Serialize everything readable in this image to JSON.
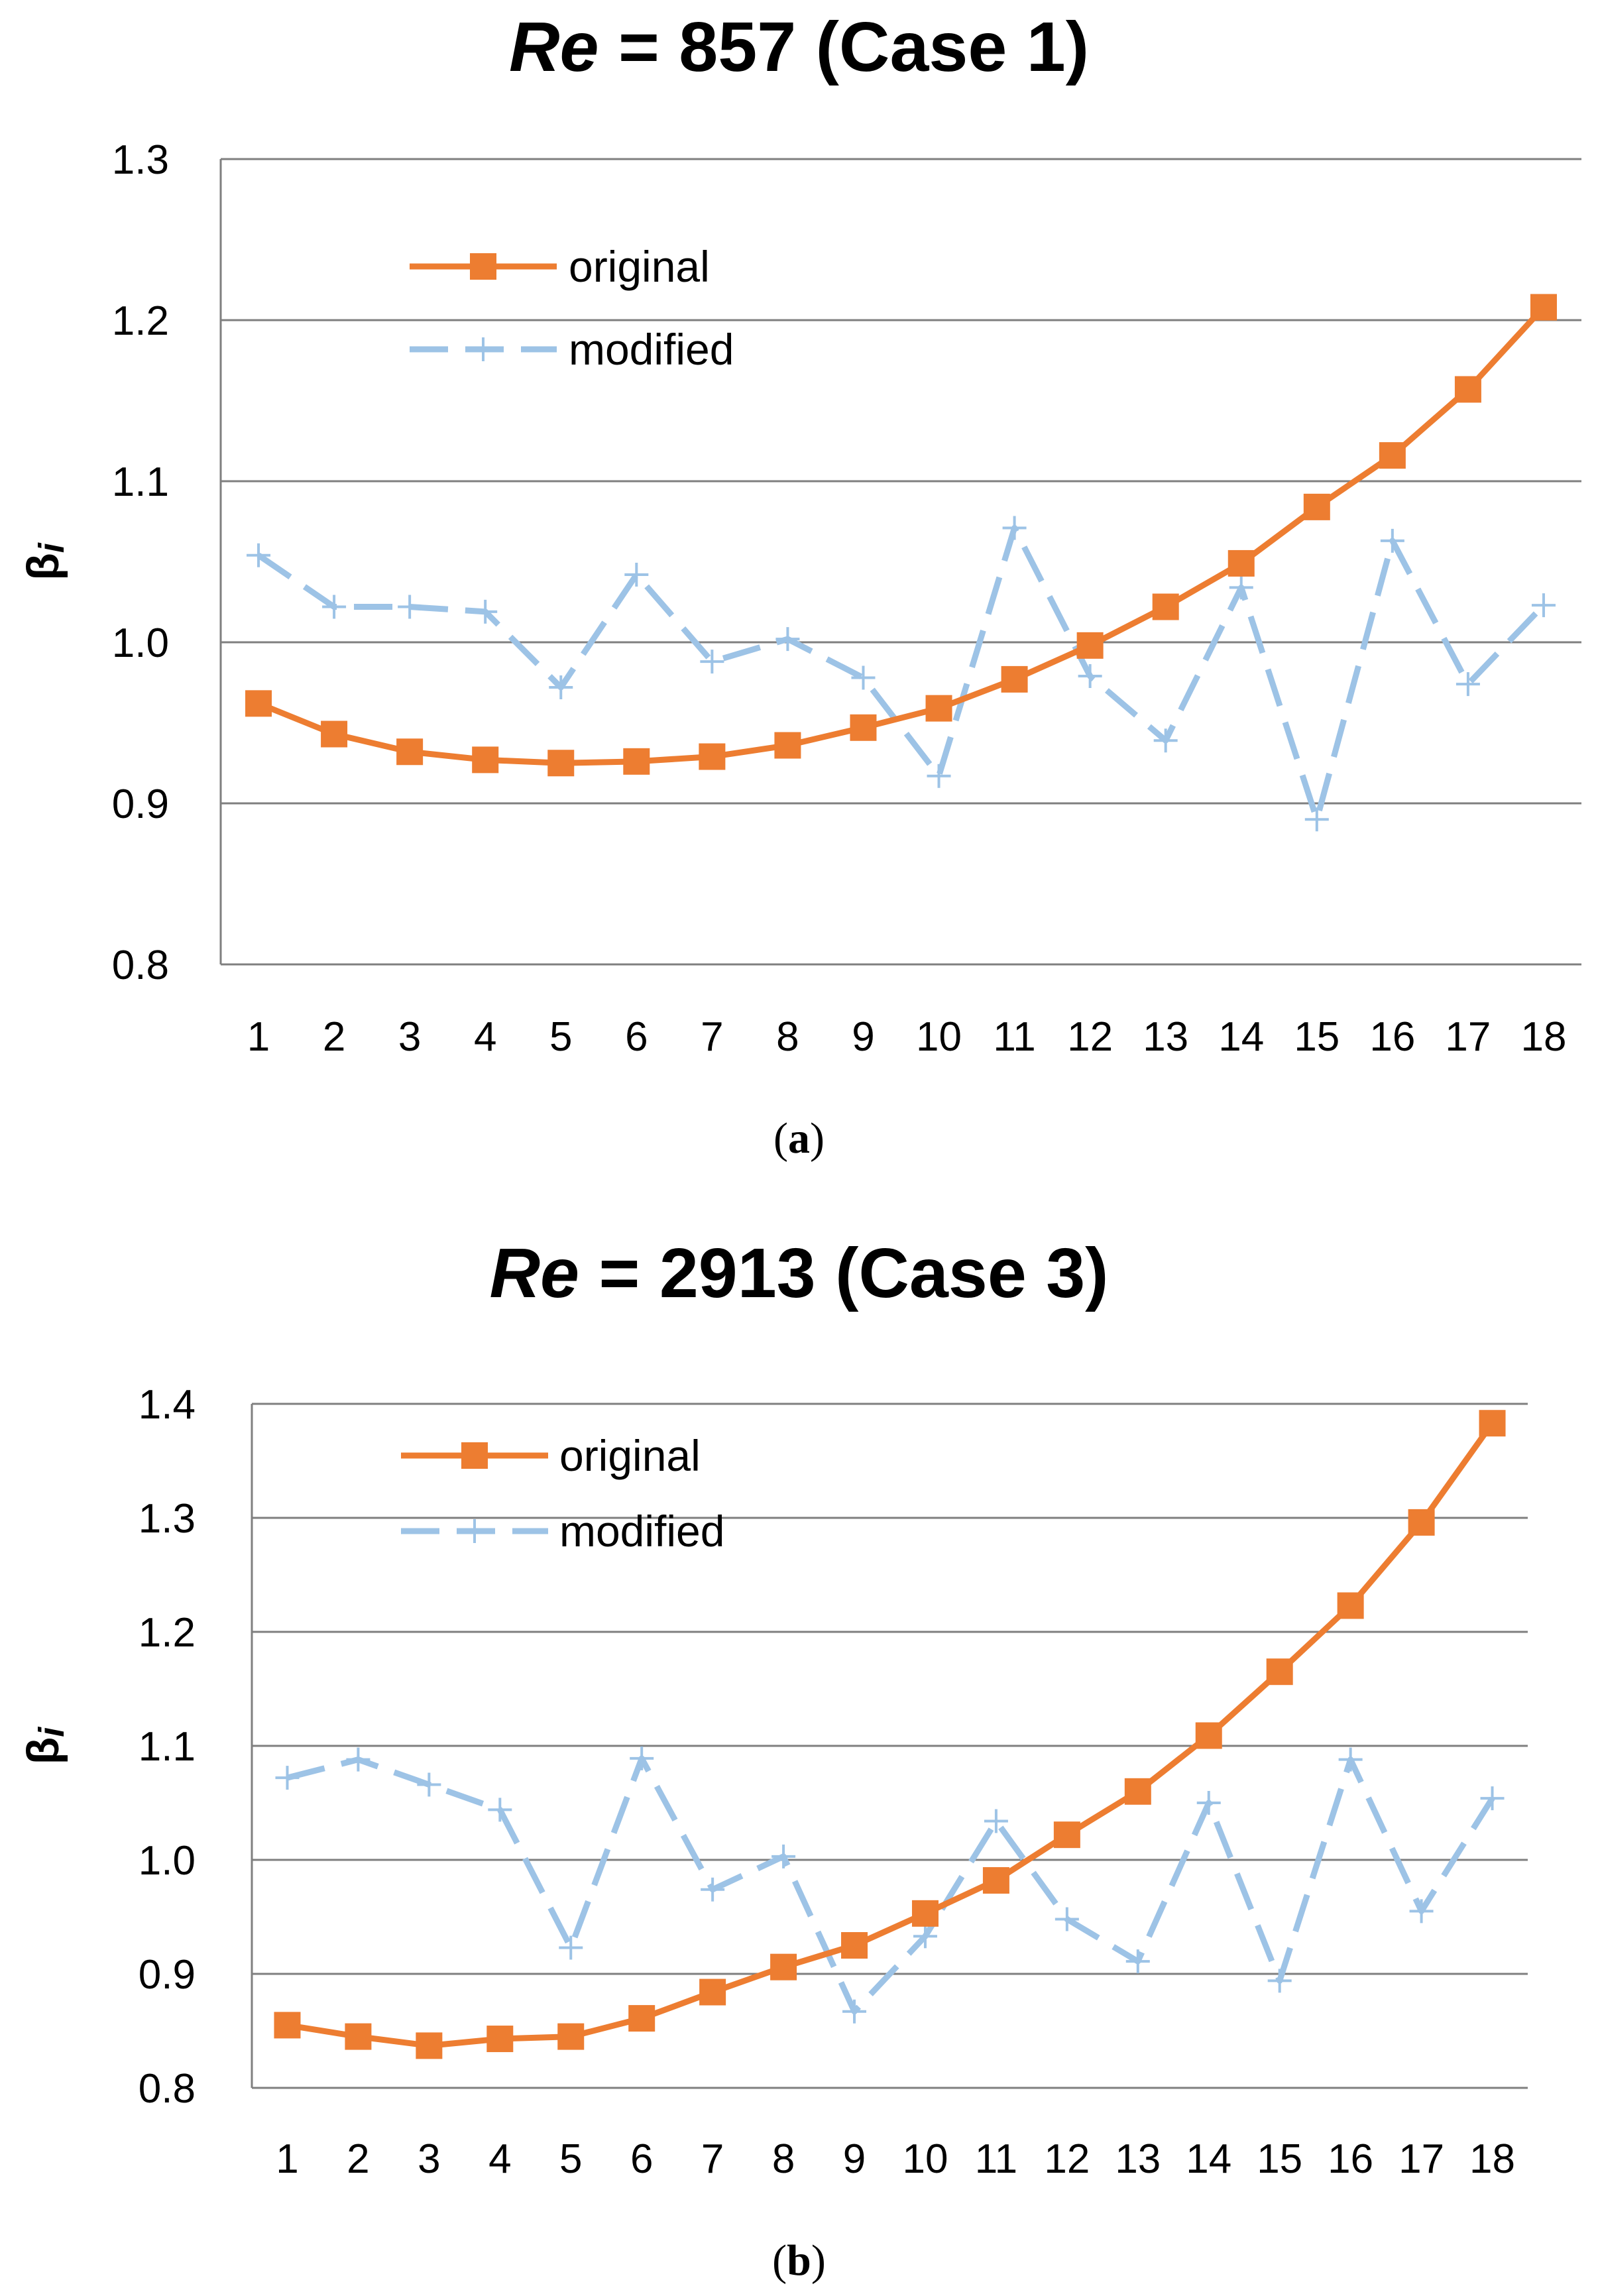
{
  "chart_data": [
    {
      "type": "line",
      "title_prefix": "Re",
      "title_suffix": " = 857 (Case 1)",
      "caption": "a",
      "xlabel": "",
      "ylabel": "βi",
      "ylabel_main": "β",
      "ylabel_sub": "i",
      "ylim": [
        0.8,
        1.3
      ],
      "yticks": [
        "0.8",
        "0.9",
        "1.0",
        "1.1",
        "1.2",
        "1.3"
      ],
      "categories": [
        "1",
        "2",
        "3",
        "4",
        "5",
        "6",
        "7",
        "8",
        "9",
        "10",
        "11",
        "12",
        "13",
        "14",
        "15",
        "16",
        "17",
        "18"
      ],
      "legend_position": "top-left",
      "series": [
        {
          "name": "original",
          "color": "#ED7D31",
          "values": [
            0.962,
            0.943,
            0.932,
            0.927,
            0.925,
            0.926,
            0.929,
            0.936,
            0.947,
            0.959,
            0.977,
            0.998,
            1.022,
            1.049,
            1.084,
            1.116,
            1.157,
            1.208
          ]
        },
        {
          "name": "modified",
          "color": "#9DC3E6",
          "values": [
            1.054,
            1.022,
            1.022,
            1.019,
            0.972,
            1.042,
            0.988,
            1.002,
            0.978,
            0.917,
            1.071,
            0.979,
            0.939,
            1.034,
            0.89,
            1.063,
            0.974,
            1.023
          ]
        }
      ]
    },
    {
      "type": "line",
      "title_prefix": "Re",
      "title_suffix": " = 2913 (Case 3)",
      "caption": "b",
      "xlabel": "",
      "ylabel": "βi",
      "ylabel_main": "β",
      "ylabel_sub": "i",
      "ylim": [
        0.8,
        1.4
      ],
      "yticks": [
        "0.8",
        "0.9",
        "1.0",
        "1.1",
        "1.2",
        "1.3",
        "1.4"
      ],
      "categories": [
        "1",
        "2",
        "3",
        "4",
        "5",
        "6",
        "7",
        "8",
        "9",
        "10",
        "11",
        "12",
        "13",
        "14",
        "15",
        "16",
        "17",
        "18"
      ],
      "legend_position": "top-left",
      "series": [
        {
          "name": "original",
          "color": "#ED7D31",
          "values": [
            0.855,
            0.845,
            0.837,
            0.843,
            0.845,
            0.861,
            0.884,
            0.906,
            0.925,
            0.953,
            0.982,
            1.022,
            1.06,
            1.109,
            1.165,
            1.223,
            1.296,
            1.383
          ]
        },
        {
          "name": "modified",
          "color": "#9DC3E6",
          "values": [
            1.072,
            1.088,
            1.066,
            1.044,
            0.923,
            1.089,
            0.974,
            1.003,
            0.867,
            0.933,
            1.034,
            0.948,
            0.911,
            1.05,
            0.894,
            1.088,
            0.955,
            1.054
          ]
        }
      ]
    }
  ]
}
